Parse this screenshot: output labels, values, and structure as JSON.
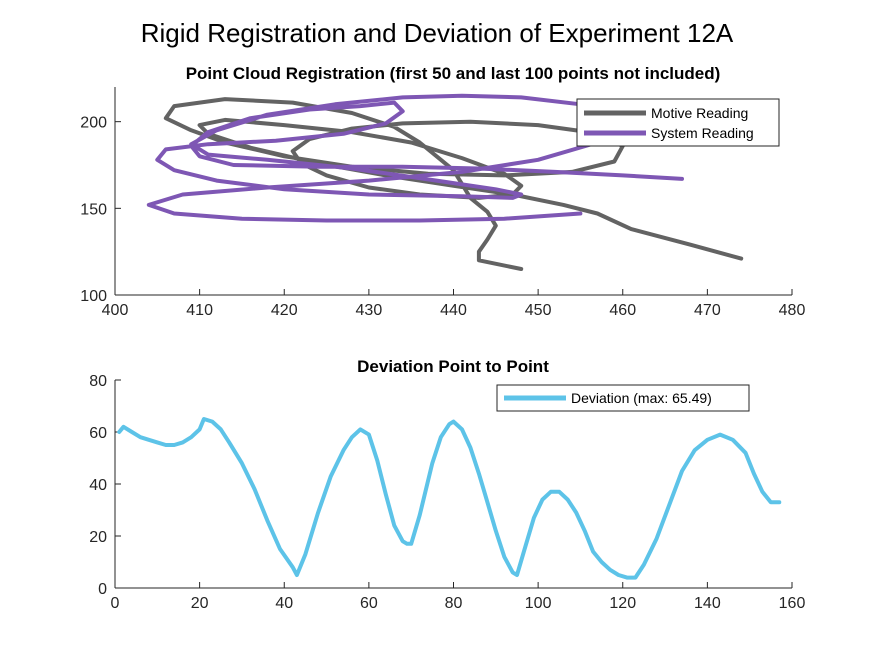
{
  "figure_title": "Rigid Registration and Deviation of Experiment 12A",
  "chart_data": [
    {
      "type": "line",
      "title": "Point Cloud Registration (first 50 and last 100 points not included)",
      "xlabel": "",
      "ylabel": "",
      "xlim": [
        400,
        480
      ],
      "ylim": [
        100,
        220
      ],
      "xticks": [
        400,
        410,
        420,
        430,
        440,
        450,
        460,
        470,
        480
      ],
      "yticks": [
        100,
        150,
        200
      ],
      "grid": false,
      "legend_position": "top-right",
      "series": [
        {
          "name": "Motive Reading",
          "color": "#636363",
          "points": [
            [
              474,
              121
            ],
            [
              468,
              129
            ],
            [
              461,
              138
            ],
            [
              457,
              147
            ],
            [
              453,
              152
            ],
            [
              447,
              158
            ],
            [
              440,
              163
            ],
            [
              432,
              169
            ],
            [
              424,
              176
            ],
            [
              416,
              185
            ],
            [
              411,
              193
            ],
            [
              410,
              198
            ],
            [
              413,
              201
            ],
            [
              420,
              198
            ],
            [
              428,
              194
            ],
            [
              435,
              188
            ],
            [
              441,
              179
            ],
            [
              446,
              170
            ],
            [
              448,
              163
            ],
            [
              447,
              158
            ],
            [
              443,
              156
            ],
            [
              436,
              158
            ],
            [
              430,
              162
            ],
            [
              425,
              169
            ],
            [
              422,
              176
            ],
            [
              421,
              183
            ],
            [
              423,
              190
            ],
            [
              428,
              196
            ],
            [
              434,
              199
            ],
            [
              442,
              200
            ],
            [
              450,
              198
            ],
            [
              456,
              194
            ],
            [
              460,
              186
            ],
            [
              459,
              177
            ],
            [
              454,
              171
            ],
            [
              446,
              169
            ],
            [
              437,
              170
            ],
            [
              428,
              174
            ],
            [
              420,
              180
            ],
            [
              413,
              188
            ],
            [
              409,
              195
            ],
            [
              406,
              202
            ],
            [
              407,
              209
            ],
            [
              413,
              213
            ],
            [
              421,
              211
            ],
            [
              428,
              205
            ],
            [
              433,
              197
            ],
            [
              436,
              188
            ],
            [
              438,
              180
            ],
            [
              440,
              172
            ],
            [
              441,
              164
            ],
            [
              442,
              156
            ],
            [
              444,
              148
            ],
            [
              445,
              140
            ],
            [
              444,
              132
            ],
            [
              443,
              125
            ],
            [
              443,
              120
            ],
            [
              448,
              115
            ]
          ]
        },
        {
          "name": "System Reading",
          "color": "#7E57B4",
          "points": [
            [
              467,
              167
            ],
            [
              460,
              169
            ],
            [
              452,
              171
            ],
            [
              443,
              173
            ],
            [
              434,
              174
            ],
            [
              424,
              174
            ],
            [
              414,
              175
            ],
            [
              410,
              180
            ],
            [
              409,
              186
            ],
            [
              411,
              194
            ],
            [
              416,
              202
            ],
            [
              423,
              207
            ],
            [
              429,
              209
            ],
            [
              433,
              211
            ],
            [
              434,
              206
            ],
            [
              432,
              199
            ],
            [
              427,
              193
            ],
            [
              419,
              189
            ],
            [
              411,
              187
            ],
            [
              406,
              184
            ],
            [
              405,
              178
            ],
            [
              407,
              172
            ],
            [
              412,
              166
            ],
            [
              420,
              161
            ],
            [
              430,
              158
            ],
            [
              441,
              157
            ],
            [
              447,
              156
            ],
            [
              448,
              158
            ],
            [
              445,
              161
            ],
            [
              438,
              166
            ],
            [
              428,
              173
            ],
            [
              418,
              178
            ],
            [
              411,
              181
            ],
            [
              409,
              187
            ],
            [
              412,
              195
            ],
            [
              418,
              204
            ],
            [
              426,
              210
            ],
            [
              434,
              214
            ],
            [
              441,
              215
            ],
            [
              448,
              214
            ],
            [
              455,
              210
            ],
            [
              459,
              201
            ],
            [
              457,
              188
            ],
            [
              450,
              178
            ],
            [
              441,
              171
            ],
            [
              430,
              166
            ],
            [
              418,
              162
            ],
            [
              408,
              158
            ],
            [
              404,
              152
            ],
            [
              407,
              147
            ],
            [
              415,
              144
            ],
            [
              425,
              143
            ],
            [
              436,
              143
            ],
            [
              446,
              144
            ],
            [
              455,
              147
            ]
          ]
        }
      ]
    },
    {
      "type": "line",
      "title": "Deviation Point to Point",
      "xlabel": "",
      "ylabel": "",
      "xlim": [
        0,
        160
      ],
      "ylim": [
        0,
        80
      ],
      "xticks": [
        0,
        20,
        40,
        60,
        80,
        100,
        120,
        140,
        160
      ],
      "yticks": [
        0,
        20,
        40,
        60,
        80
      ],
      "grid": false,
      "legend_position": "top-right",
      "series": [
        {
          "name": "Deviation (max: 65.49)",
          "color": "#5DC3E8",
          "x": [
            1,
            2,
            4,
            6,
            8,
            10,
            12,
            14,
            16,
            18,
            20,
            21,
            23,
            25,
            27,
            30,
            33,
            36,
            39,
            42,
            43,
            45,
            48,
            51,
            54,
            56,
            58,
            60,
            62,
            64,
            66,
            68,
            69,
            70,
            72,
            75,
            77,
            79,
            80,
            82,
            84,
            86,
            88,
            90,
            92,
            94,
            95,
            97,
            99,
            101,
            103,
            105,
            107,
            109,
            111,
            113,
            115,
            117,
            119,
            121,
            123,
            125,
            128,
            131,
            134,
            137,
            140,
            143,
            146,
            149,
            151,
            153,
            155,
            157
          ],
          "y": [
            60,
            62,
            60,
            58,
            57,
            56,
            55,
            55,
            56,
            58,
            61,
            65,
            64,
            61,
            56,
            48,
            38,
            26,
            15,
            8,
            5,
            13,
            29,
            43,
            53,
            58,
            61,
            59,
            49,
            36,
            24,
            18,
            17,
            17,
            28,
            48,
            58,
            63,
            64,
            61,
            54,
            44,
            33,
            22,
            12,
            6,
            5,
            16,
            27,
            34,
            37,
            37,
            34,
            29,
            22,
            14,
            10,
            7,
            5,
            4,
            4,
            9,
            19,
            32,
            45,
            53,
            57,
            59,
            57,
            52,
            44,
            37,
            33,
            33
          ]
        }
      ]
    }
  ]
}
